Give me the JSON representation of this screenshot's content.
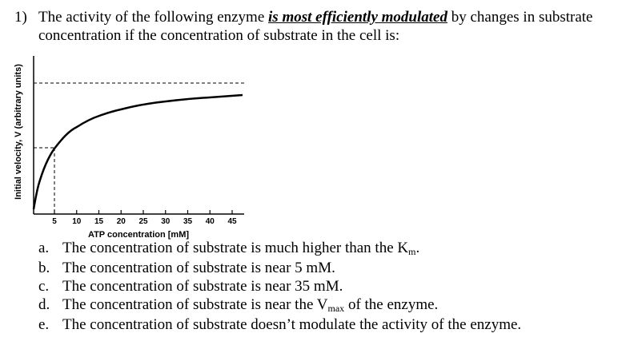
{
  "question": {
    "number": "1)",
    "text_before": "The activity of the following enzyme ",
    "emphasis": "is most efficiently modulated",
    "text_after_line1": " by changes in substrate",
    "line2": "concentration if the concentration of substrate in the cell is:"
  },
  "figure": {
    "xlabel": "ATP concentration [mM]",
    "ylabel": "Initial velocity, V (arbitrary units)",
    "xlim": [
      0,
      48
    ],
    "xticks": [
      5,
      10,
      15,
      20,
      25,
      30,
      35,
      40,
      45
    ]
  },
  "options": [
    {
      "letter": "a.",
      "text": "The concentration of substrate is much higher than the K",
      "sub": "m",
      "after": "."
    },
    {
      "letter": "b.",
      "text": "The concentration of substrate is near 5 mM."
    },
    {
      "letter": "c.",
      "text": "The concentration of substrate is near 35 mM."
    },
    {
      "letter": "d.",
      "text": "The concentration of substrate is near the V",
      "sub": "max",
      "after": " of the enzyme."
    },
    {
      "letter": "e.",
      "text": "The concentration of substrate doesn’t modulate the activity of the enzyme."
    }
  ]
}
